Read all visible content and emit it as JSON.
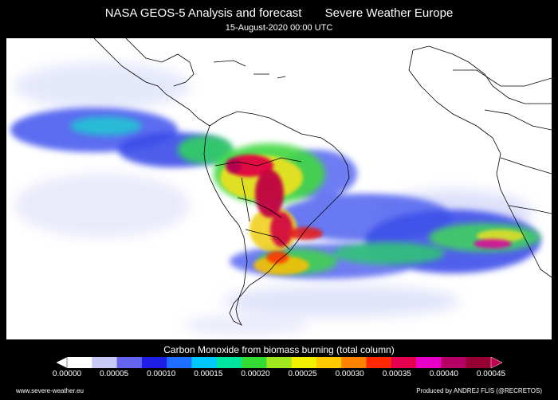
{
  "header": {
    "title": "NASA GEOS-5 Analysis and forecast       Severe Weather Europe",
    "subtitle": "15-August-2020 00:00 UTC"
  },
  "colorbar": {
    "title": "Carbon Monoxide from biomass burning (total column)",
    "ticks": [
      "0.00000",
      "0.00005",
      "0.00010",
      "0.00015",
      "0.00020",
      "0.00025",
      "0.00030",
      "0.00035",
      "0.00040",
      "0.00045"
    ],
    "colors": [
      "#ffffff",
      "#c8c8f5",
      "#6464f0",
      "#1e1ee6",
      "#1e6eff",
      "#00c8ff",
      "#00e6a0",
      "#32dc32",
      "#a0e61e",
      "#f0f000",
      "#ffc800",
      "#ff8200",
      "#ff2800",
      "#e60050",
      "#e600c8",
      "#b40064",
      "#960032"
    ]
  },
  "footer": {
    "left": "www.severe-weather.eu",
    "right": "Produced by ANDREJ FLIS (@RECRETOS)"
  }
}
